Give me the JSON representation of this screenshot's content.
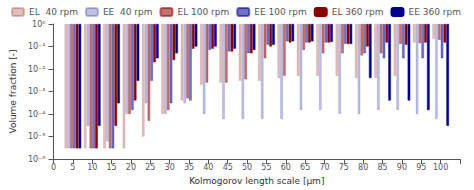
{
  "chart_data": {
    "type": "bar",
    "xlabel": "Kolmogorov length scale [μm]",
    "ylabel": "Volume fraction [-]",
    "x": [
      5,
      10,
      15,
      20,
      25,
      30,
      35,
      40,
      45,
      50,
      55,
      60,
      65,
      70,
      75,
      80,
      85,
      90,
      95,
      100
    ],
    "series": [
      {
        "name": "EL  40 rpm",
        "color": "#8B0000",
        "values": [
          3e-06,
          3e-06,
          3e-06,
          3e-06,
          1e-05,
          0.0001,
          0.0004,
          0.002,
          0.0025,
          0.003,
          0.003,
          0.004,
          0.005,
          0.005,
          0.005,
          0.004,
          0.004,
          0.005,
          0.15,
          0.22
        ]
      },
      {
        "name": "EE  40 rpm",
        "color": "#000090",
        "values": [
          3e-06,
          3e-05,
          6e-06,
          0.0001,
          0.0003,
          0.0001,
          0.0003,
          0.0001,
          6e-05,
          6e-05,
          6e-05,
          6e-05,
          0.00015,
          0.00015,
          0.0001,
          0.0001,
          0.00015,
          0.00015,
          0.0001,
          6e-05
        ]
      },
      {
        "name": "EL 100 rpm",
        "color": "#8B0000",
        "values": [
          3e-06,
          3e-06,
          3e-06,
          0.0001,
          5e-05,
          0.00015,
          0.0005,
          0.0025,
          0.0025,
          0.0035,
          0.03,
          0.005,
          0.07,
          0.05,
          0.05,
          0.04,
          0.05,
          0.13,
          0.14,
          0.2
        ]
      },
      {
        "name": "EE 100 rpm",
        "color": "#000090",
        "values": [
          3e-06,
          3e-06,
          3e-06,
          0.00015,
          0.003,
          0.0003,
          0.0004,
          0.07,
          0.06,
          0.05,
          0.12,
          0.17,
          0.15,
          0.15,
          0.13,
          0.05,
          0.03,
          0.03,
          0.03,
          0.03
        ]
      },
      {
        "name": "EL 360 rpm",
        "color": "#8B0000",
        "values": [
          3e-06,
          3e-06,
          3e-05,
          0.0004,
          0.02,
          0.025,
          0.08,
          0.08,
          0.06,
          0.05,
          0.1,
          0.15,
          0.15,
          0.15,
          0.13,
          0.1,
          0.15,
          0.12,
          0.15,
          0.15
        ]
      },
      {
        "name": "EE 360 rpm",
        "color": "#000090",
        "values": [
          3e-06,
          3e-05,
          0.0003,
          0.003,
          0.03,
          0.05,
          0.1,
          0.1,
          0.08,
          0.07,
          0.12,
          0.17,
          0.17,
          0.16,
          0.13,
          0.004,
          0.0004,
          0.0004,
          0.00015,
          3e-05
        ]
      }
    ],
    "xlim": [
      0,
      105
    ],
    "xticks": [
      0,
      5,
      10,
      15,
      20,
      25,
      30,
      35,
      40,
      45,
      50,
      55,
      60,
      65,
      70,
      75,
      80,
      85,
      90,
      95,
      100
    ],
    "ylim": [
      1e-06,
      1
    ],
    "yticks": [
      {
        "value": 1e-06,
        "label": "10⁻⁶"
      },
      {
        "value": 1e-05,
        "label": "10⁻⁵"
      },
      {
        "value": 0.0001,
        "label": "10⁻⁴"
      },
      {
        "value": 0.001,
        "label": "10⁻³"
      },
      {
        "value": 0.01,
        "label": "10⁻²"
      },
      {
        "value": 0.1,
        "label": "10⁻¹"
      },
      {
        "value": 1,
        "label": "10⁰"
      }
    ],
    "log": "y",
    "grid": false,
    "legend": "upper left"
  }
}
